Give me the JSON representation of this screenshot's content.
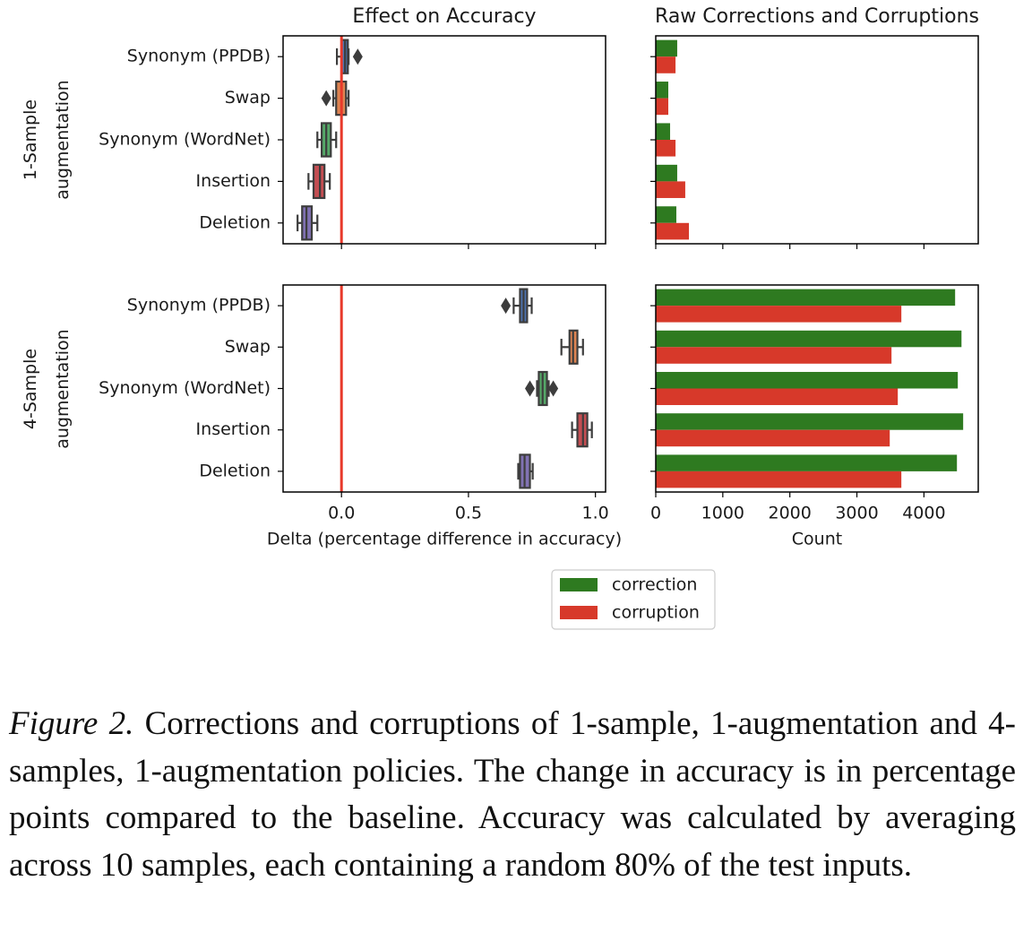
{
  "chart_data": [
    {
      "type": "box",
      "title": "Effect on Accuracy",
      "y_label": "1-Sample augmentation",
      "categories": [
        "Synonym (PPDB)",
        "Swap",
        "Synonym (WordNet)",
        "Insertion",
        "Deletion"
      ],
      "boxes": [
        {
          "min": -0.018,
          "q1": 0.0,
          "median": 0.014,
          "q3": 0.025,
          "max": 0.028,
          "outliers": [
            0.064
          ],
          "color": "#4c72b0"
        },
        {
          "min": -0.032,
          "q1": -0.021,
          "median": 0.0,
          "q3": 0.018,
          "max": 0.028,
          "outliers": [
            -0.06
          ],
          "color": "#dd8452"
        },
        {
          "min": -0.095,
          "q1": -0.078,
          "median": -0.06,
          "q3": -0.042,
          "max": -0.021,
          "outliers": [],
          "color": "#55a868"
        },
        {
          "min": -0.13,
          "q1": -0.11,
          "median": -0.085,
          "q3": -0.067,
          "max": -0.046,
          "outliers": [],
          "color": "#c44e52"
        },
        {
          "min": -0.173,
          "q1": -0.155,
          "median": -0.138,
          "q3": -0.117,
          "max": -0.095,
          "outliers": [],
          "color": "#8172b3"
        }
      ],
      "reference_line": {
        "value": 0,
        "color": "#e8392b"
      },
      "xlim": [
        -0.23,
        1.04
      ]
    },
    {
      "type": "bar",
      "title": "Raw Corrections and Corruptions",
      "series": [
        {
          "name": "correction",
          "color": "#2e7a20",
          "values": [
            320,
            187,
            214,
            320,
            307
          ]
        },
        {
          "name": "corruption",
          "color": "#d7392a",
          "values": [
            295,
            187,
            295,
            440,
            495
          ]
        }
      ],
      "xlim": [
        0,
        4810
      ]
    },
    {
      "type": "box",
      "y_label": "4-Sample augmentation",
      "x_label": "Delta (percentage difference in accuracy)",
      "categories": [
        "Synonym (PPDB)",
        "Swap",
        "Synonym (WordNet)",
        "Insertion",
        "Deletion"
      ],
      "boxes": [
        {
          "min": 0.678,
          "q1": 0.703,
          "median": 0.717,
          "q3": 0.731,
          "max": 0.749,
          "outliers": [
            0.647
          ],
          "color": "#4c72b0"
        },
        {
          "min": 0.866,
          "q1": 0.898,
          "median": 0.912,
          "q3": 0.929,
          "max": 0.951,
          "outliers": [],
          "color": "#dd8452"
        },
        {
          "min": 0.77,
          "q1": 0.777,
          "median": 0.792,
          "q3": 0.809,
          "max": 0.816,
          "outliers": [
            0.742,
            0.834
          ],
          "color": "#55a868"
        },
        {
          "min": 0.908,
          "q1": 0.929,
          "median": 0.951,
          "q3": 0.968,
          "max": 0.986,
          "outliers": [],
          "color": "#c44e52"
        },
        {
          "min": 0.696,
          "q1": 0.703,
          "median": 0.721,
          "q3": 0.742,
          "max": 0.753,
          "outliers": [],
          "color": "#8172b3"
        }
      ],
      "reference_line": {
        "value": 0,
        "color": "#e8392b"
      },
      "xlim": [
        -0.23,
        1.04
      ],
      "xticks": [
        {
          "value": 0,
          "label": "0.0"
        },
        {
          "value": 0.5,
          "label": "0.5"
        },
        {
          "value": 1,
          "label": "1.0"
        }
      ]
    },
    {
      "type": "bar",
      "x_label": "Count",
      "series": [
        {
          "name": "correction",
          "color": "#2e7a20",
          "values": [
            4465,
            4560,
            4505,
            4585,
            4492
          ]
        },
        {
          "name": "corruption",
          "color": "#d7392a",
          "values": [
            3663,
            3516,
            3610,
            3490,
            3663
          ]
        }
      ],
      "xlim": [
        0,
        4810
      ],
      "xticks": [
        0,
        1000,
        2000,
        3000,
        4000
      ]
    }
  ],
  "caption": {
    "label": "Figure 2.",
    "text": "Corrections and corruptions of 1-sample, 1-augmentation and 4-samples, 1-augmentation policies. The change in accuracy is in percentage points compared to the baseline. Accuracy was calculated by averaging across 10 samples, each containing a random 80% of the test inputs."
  }
}
